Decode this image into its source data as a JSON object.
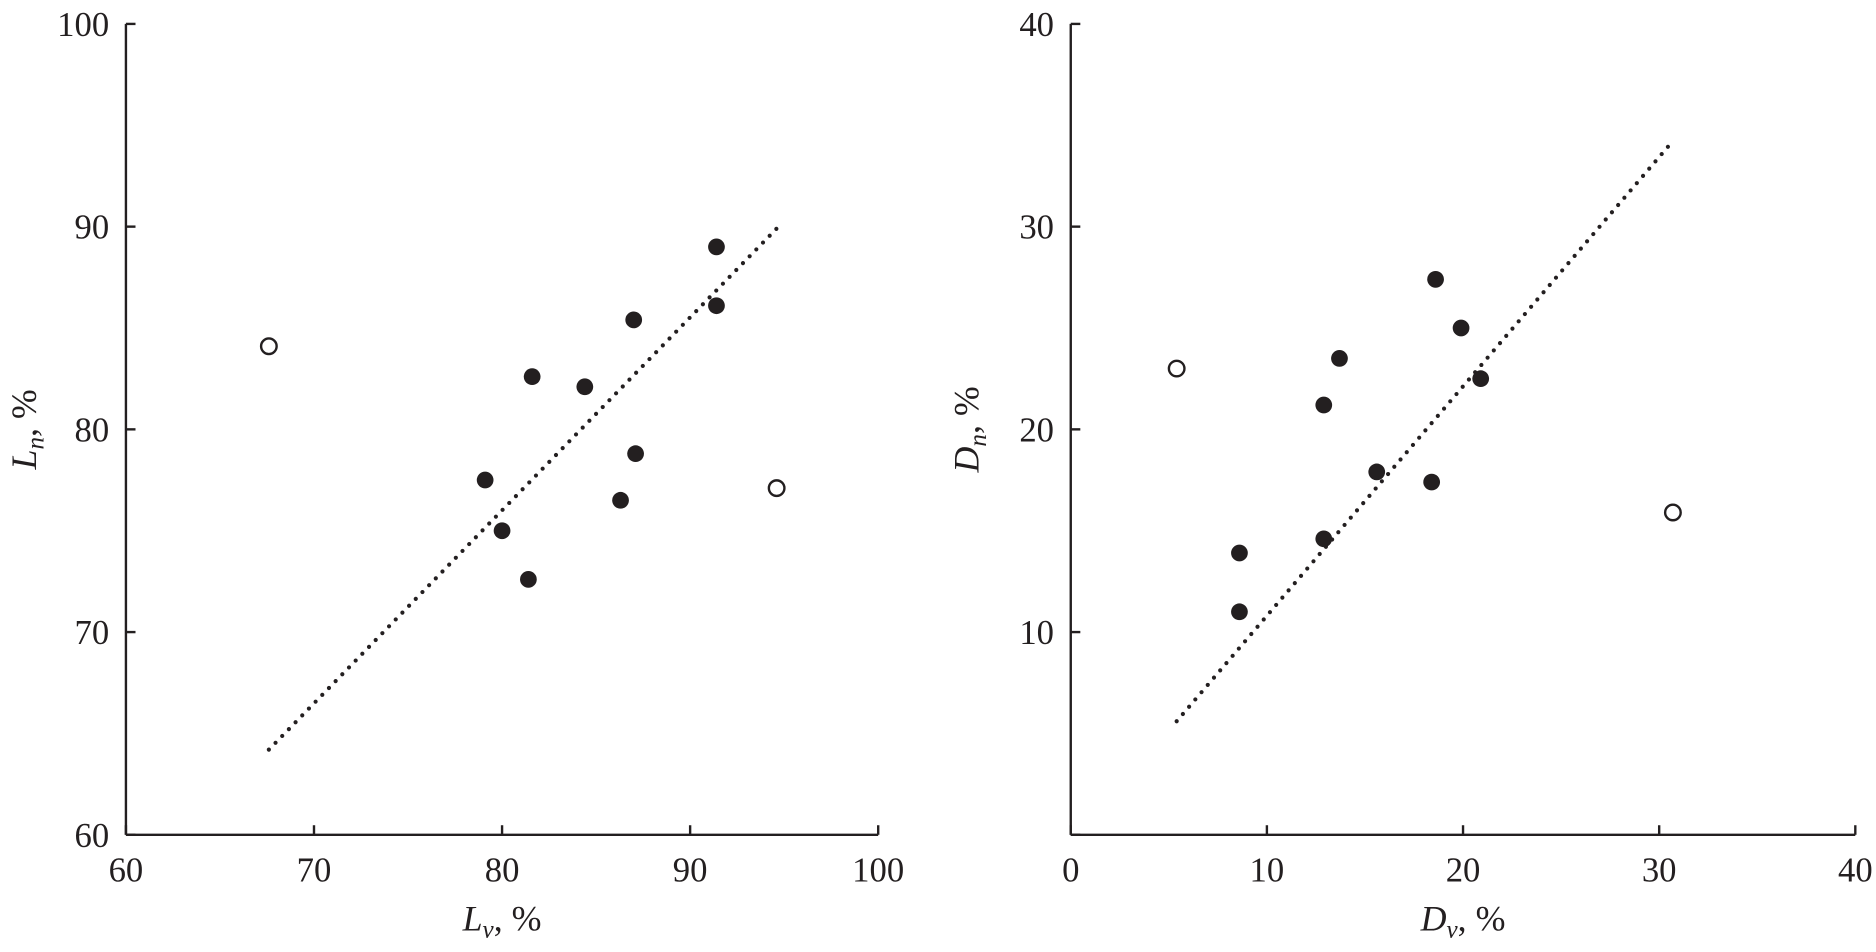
{
  "chart_data": [
    {
      "type": "scatter",
      "xlabel": {
        "main": "L",
        "sub": "v",
        "suffix": ", %"
      },
      "ylabel": {
        "main": "L",
        "sub": "n",
        "suffix": ", %"
      },
      "xlim": [
        60,
        100
      ],
      "ylim": [
        60,
        100
      ],
      "xticks": [
        "60",
        "70",
        "80",
        "90",
        "100"
      ],
      "yticks": [
        "60",
        "70",
        "80",
        "90",
        "100"
      ],
      "grid": false,
      "filled_points": [
        [
          91.4,
          89.0
        ],
        [
          91.4,
          86.1
        ],
        [
          87.0,
          85.4
        ],
        [
          81.6,
          82.6
        ],
        [
          84.4,
          82.1
        ],
        [
          79.1,
          77.5
        ],
        [
          87.1,
          78.8
        ],
        [
          86.3,
          76.5
        ],
        [
          80.0,
          75.0
        ],
        [
          81.4,
          72.6
        ]
      ],
      "open_points": [
        [
          67.6,
          84.1
        ],
        [
          94.6,
          77.1
        ]
      ],
      "trend_line": [
        [
          67.6,
          64.2
        ],
        [
          94.7,
          90.0
        ]
      ]
    },
    {
      "type": "scatter",
      "xlabel": {
        "main": "D",
        "sub": "v",
        "suffix": ", %"
      },
      "ylabel": {
        "main": "D",
        "sub": "n",
        "suffix": ", %"
      },
      "xlim": [
        0,
        40
      ],
      "ylim": [
        0,
        40
      ],
      "xticks": [
        "0",
        "10",
        "20",
        "30",
        "40"
      ],
      "yticks": [
        "",
        "10",
        "20",
        "30",
        "40"
      ],
      "grid": false,
      "filled_points": [
        [
          18.6,
          27.4
        ],
        [
          19.9,
          25.0
        ],
        [
          20.9,
          22.5
        ],
        [
          13.7,
          23.5
        ],
        [
          12.9,
          21.2
        ],
        [
          15.6,
          17.9
        ],
        [
          18.4,
          17.4
        ],
        [
          12.9,
          14.6
        ],
        [
          8.6,
          13.9
        ],
        [
          8.6,
          11.0
        ]
      ],
      "open_points": [
        [
          5.4,
          23.0
        ],
        [
          30.7,
          15.9
        ]
      ],
      "trend_line": [
        [
          5.4,
          5.6
        ],
        [
          30.5,
          34.0
        ]
      ]
    }
  ]
}
